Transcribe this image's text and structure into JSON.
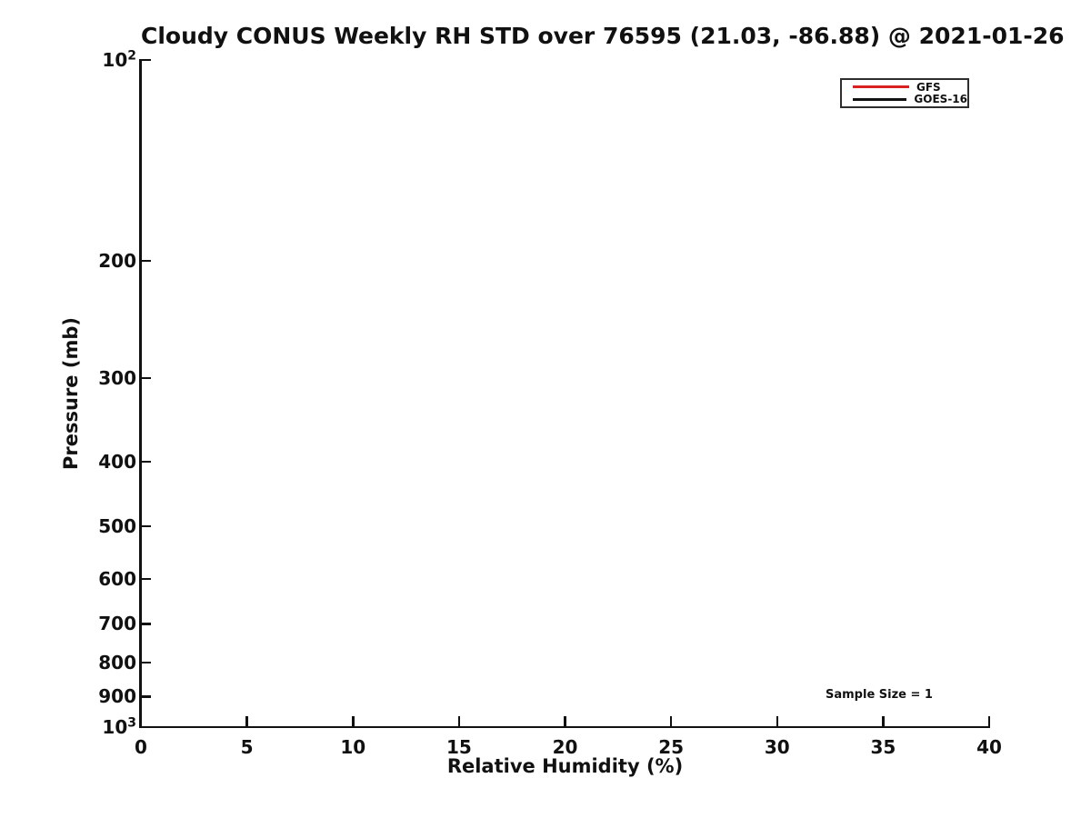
{
  "figure": {
    "background_color": "#ffffff",
    "text_color": "#111111",
    "title": "Cloudy CONUS Weekly RH STD over 76595 (21.03, -86.88) @ 2021-01-26"
  },
  "chart_data": {
    "type": "line",
    "title": "Cloudy CONUS Weekly RH STD over 76595 (21.03, -86.88) @ 2021-01-26",
    "xlabel": "Relative Humidity (%)",
    "ylabel": "Pressure (mb)",
    "xlim": [
      0,
      40
    ],
    "ylim_mb": [
      100,
      1000
    ],
    "x_scale": "linear",
    "y_scale": "log",
    "y_inverted": true,
    "grid": false,
    "x_ticks": [
      0,
      5,
      10,
      15,
      20,
      25,
      30,
      35,
      40
    ],
    "x_tick_labels": [
      "0",
      "5",
      "10",
      "15",
      "20",
      "25",
      "30",
      "35",
      "40"
    ],
    "y_ticks": [
      100,
      200,
      300,
      400,
      500,
      600,
      700,
      800,
      900,
      1000
    ],
    "y_tick_labels": [
      "10^2",
      "200",
      "300",
      "400",
      "500",
      "600",
      "700",
      "800",
      "900",
      "10^3"
    ],
    "legend": {
      "position": "upper right",
      "entries": [
        {
          "name": "GFS",
          "color": "#d92121"
        },
        {
          "name": "GOES-16",
          "color": "#111111"
        }
      ]
    },
    "series": [
      {
        "name": "GFS",
        "color": "#d92121",
        "x": [],
        "y_mb": []
      },
      {
        "name": "GOES-16",
        "color": "#111111",
        "x": [],
        "y_mb": []
      }
    ],
    "annotations": [
      {
        "text": "Sample Size = 1",
        "x": 34.8,
        "y_mb": 900
      }
    ]
  },
  "annotation": {
    "sample_size_label": "Sample Size = 1"
  }
}
